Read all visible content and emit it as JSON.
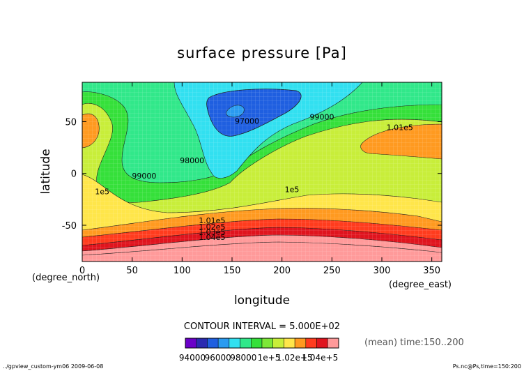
{
  "chart_data": {
    "type": "contour",
    "title": "surface pressure [Pa]",
    "xlabel": "longitude",
    "ylabel": "latitude",
    "xunit": "(degree_east)",
    "yunit": "(degree_north)",
    "xlim": [
      0,
      360
    ],
    "ylim": [
      -85,
      88
    ],
    "xticks": [
      0,
      50,
      100,
      150,
      200,
      250,
      300,
      350
    ],
    "yticks": [
      -50,
      0,
      50
    ],
    "contour_interval_text": "CONTOUR INTERVAL = 5.000E+02",
    "mean_text": "(mean) time:150..200",
    "footer_left": "../gpview_custom-ym06  2009-06-08",
    "footer_right": "Ps.nc@Ps,time=150:200",
    "colorbar": {
      "colors": [
        "#6a00c8",
        "#2a2ab0",
        "#1f5fe0",
        "#2a9bf0",
        "#32e0f0",
        "#31e88a",
        "#35e03a",
        "#7de838",
        "#c8ee3a",
        "#ffe64a",
        "#ff9a20",
        "#ff3c1e",
        "#e0141e",
        "#ff9a9a"
      ],
      "tick_labels": [
        "94000",
        "96000",
        "98000",
        "1e+5",
        "1.02e+5",
        "1.04e+5"
      ]
    },
    "contour_labels": [
      {
        "text": "97000",
        "lon": 165,
        "lat": 48
      },
      {
        "text": "99000",
        "lon": 240,
        "lat": 52
      },
      {
        "text": "1.01e5",
        "lon": 318,
        "lat": 42
      },
      {
        "text": "98000",
        "lon": 110,
        "lat": 10
      },
      {
        "text": "99000",
        "lon": 62,
        "lat": -5
      },
      {
        "text": "1e5",
        "lon": 20,
        "lat": -20
      },
      {
        "text": "1e5",
        "lon": 210,
        "lat": -18
      },
      {
        "text": "1.01e5",
        "lon": 130,
        "lat": -48
      },
      {
        "text": "1.02e5",
        "lon": 130,
        "lat": -54
      },
      {
        "text": "1.03e5",
        "lon": 130,
        "lat": -59
      },
      {
        "text": "1.04e5",
        "lon": 130,
        "lat": -64
      }
    ]
  }
}
